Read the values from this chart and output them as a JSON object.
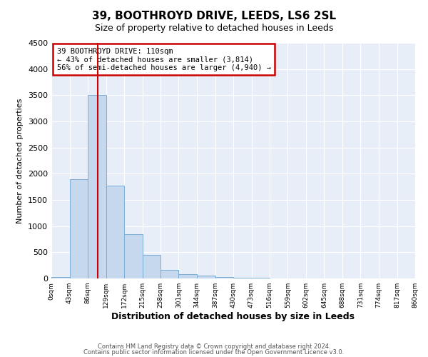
{
  "title": "39, BOOTHROYD DRIVE, LEEDS, LS6 2SL",
  "subtitle": "Size of property relative to detached houses in Leeds",
  "xlabel": "Distribution of detached houses by size in Leeds",
  "ylabel": "Number of detached properties",
  "bin_edges": [
    0,
    43,
    86,
    129,
    172,
    215,
    258,
    301,
    344,
    387,
    430,
    473,
    516,
    559,
    602,
    645,
    688,
    731,
    774,
    817,
    860
  ],
  "bar_heights": [
    30,
    1900,
    3500,
    1775,
    850,
    450,
    160,
    85,
    55,
    30,
    20,
    8,
    4,
    2,
    1,
    1,
    0,
    0,
    0,
    0
  ],
  "bar_color": "#c5d8ee",
  "bar_edge_color": "#7aadd4",
  "vline_x": 110,
  "vline_color": "#cc0000",
  "annotation_line1": "39 BOOTHROYD DRIVE: 110sqm",
  "annotation_line2": "← 43% of detached houses are smaller (3,814)",
  "annotation_line3": "56% of semi-detached houses are larger (4,940) →",
  "annotation_box_color": "#cc0000",
  "ylim": [
    0,
    4500
  ],
  "xlim": [
    0,
    860
  ],
  "ax_background_color": "#e8eef8",
  "grid_color": "#ffffff",
  "footer_line1": "Contains HM Land Registry data © Crown copyright and database right 2024.",
  "footer_line2": "Contains public sector information licensed under the Open Government Licence v3.0.",
  "fig_background_color": "#ffffff"
}
